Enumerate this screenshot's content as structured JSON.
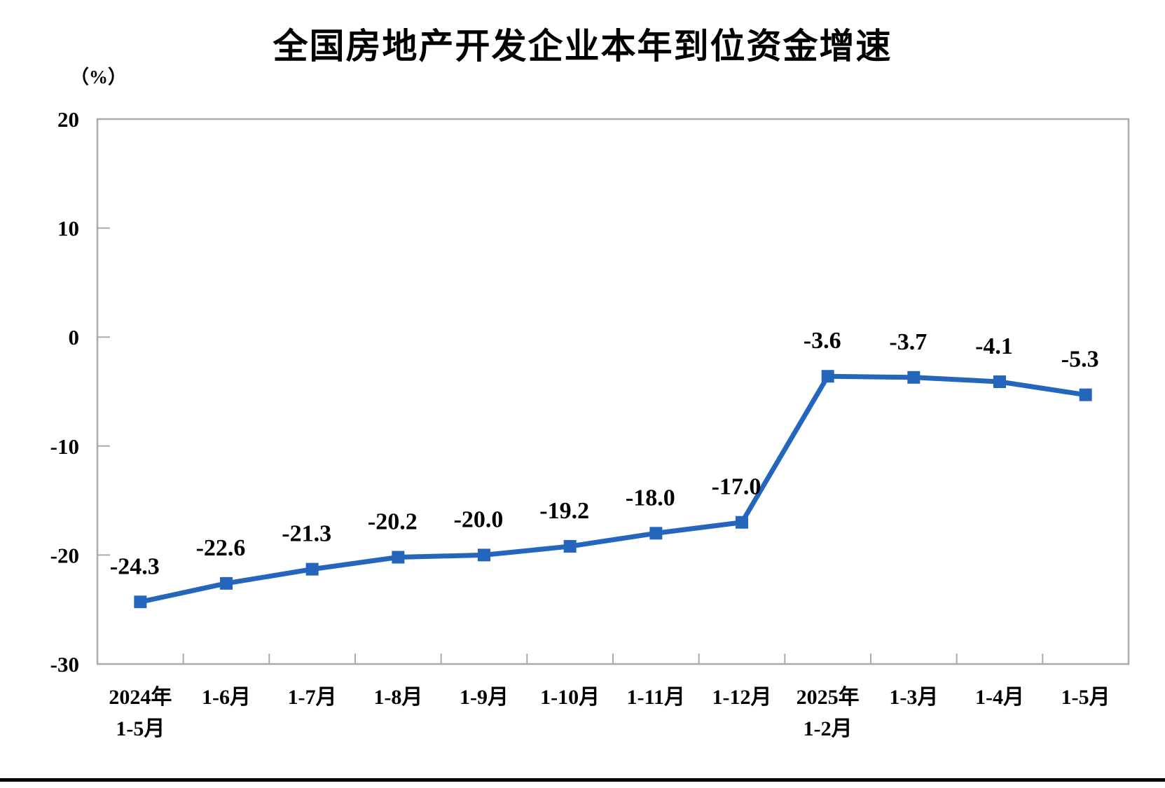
{
  "chart_data": {
    "type": "line",
    "title": "全国房地产开发企业本年到位资金增速",
    "y_axis_unit_label": "（%）",
    "categories": [
      [
        "2024年",
        "1-5月"
      ],
      [
        "1-6月",
        ""
      ],
      [
        "1-7月",
        ""
      ],
      [
        "1-8月",
        ""
      ],
      [
        "1-9月",
        ""
      ],
      [
        "1-10月",
        ""
      ],
      [
        "1-11月",
        ""
      ],
      [
        "1-12月",
        ""
      ],
      [
        "2025年",
        "1-2月"
      ],
      [
        "1-3月",
        ""
      ],
      [
        "1-4月",
        ""
      ],
      [
        "1-5月",
        ""
      ]
    ],
    "values": [
      -24.3,
      -22.6,
      -21.3,
      -20.2,
      -20.0,
      -19.2,
      -18.0,
      -17.0,
      -3.6,
      -3.7,
      -4.1,
      -5.3
    ],
    "data_labels": [
      "-24.3",
      "-22.6",
      "-21.3",
      "-20.2",
      "-20.0",
      "-19.2",
      "-18.0",
      "-17.0",
      "-3.6",
      "-3.7",
      "-4.1",
      "-5.3"
    ],
    "ylim": [
      -30,
      20
    ],
    "yticks": [
      20,
      10,
      0,
      -10,
      -20,
      -30
    ],
    "ytick_labels": [
      "20",
      "10",
      "0",
      "-10",
      "-20",
      "-30"
    ],
    "grid": "off",
    "legend": "none",
    "marker": "square",
    "line_color": "#2566BD",
    "axis_color": "#ABABAB",
    "text_color": "#000000",
    "divider_color": "#000000"
  }
}
